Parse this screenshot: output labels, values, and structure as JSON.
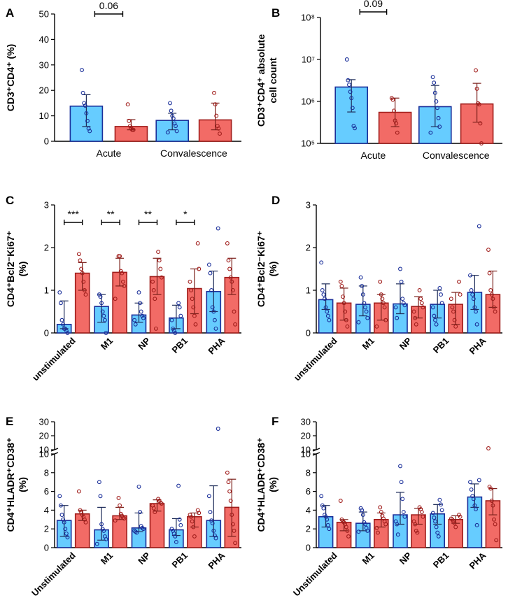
{
  "colors": {
    "acute": "#66ccff",
    "acute_edge": "#1a2f9a",
    "conv": "#f26b66",
    "conv_edge": "#a11e1c",
    "axis": "#000000"
  },
  "chart_data": [
    {
      "panel": "A",
      "type": "bar",
      "ylabel": "CD3⁺CD4⁺ (%)",
      "ylim": [
        0,
        50
      ],
      "yscale": "linear",
      "yticks": [
        "0",
        "10",
        "20",
        "30",
        "40",
        "50"
      ],
      "groups": [
        "Acute",
        "Convalescence"
      ],
      "bars": [
        {
          "series": "acute",
          "value": 13.8,
          "err": [
            5.8,
            18.3
          ],
          "points": [
            28,
            19,
            15,
            14,
            11,
            8,
            5,
            4
          ]
        },
        {
          "series": "conv",
          "value": 5.8,
          "err": [
            4.5,
            8.5
          ],
          "points": [
            14.5,
            8,
            6,
            5,
            4.5,
            4.5
          ]
        },
        {
          "series": "acute",
          "value": 8.2,
          "err": [
            4.5,
            11
          ],
          "points": [
            15,
            12,
            10,
            9,
            7,
            6,
            4,
            3.5
          ]
        },
        {
          "series": "conv",
          "value": 8.4,
          "err": [
            4.5,
            15
          ],
          "points": [
            19,
            14.5,
            10,
            6,
            5,
            3
          ]
        }
      ],
      "annotations": [
        {
          "text": "0.06",
          "from": 0,
          "to": 1
        }
      ]
    },
    {
      "panel": "B",
      "type": "bar",
      "ylabel": "CD3⁺CD4⁺ absolute cell count",
      "ylim": [
        100000,
        100000000
      ],
      "yscale": "log",
      "yticks": [
        "10⁵",
        "10⁶",
        "10⁷",
        "10⁸"
      ],
      "groups": [
        "Acute",
        "Convalescence"
      ],
      "bars": [
        {
          "series": "acute",
          "value": 2200000,
          "err": [
            560000,
            3300000
          ],
          "points": [
            10000000,
            3200000,
            2500000,
            1700000,
            1200000,
            700000,
            260000,
            230000
          ]
        },
        {
          "series": "conv",
          "value": 550000,
          "err": [
            250000,
            1200000
          ],
          "points": [
            1200000,
            1100000,
            600000,
            350000,
            300000,
            180000
          ]
        },
        {
          "series": "acute",
          "value": 750000,
          "err": [
            250000,
            2400000
          ],
          "points": [
            3800000,
            2800000,
            1600000,
            1000000,
            700000,
            400000,
            250000,
            180000
          ]
        },
        {
          "series": "conv",
          "value": 870000,
          "err": [
            320000,
            2700000
          ],
          "points": [
            5500000,
            2000000,
            900000,
            850000,
            300000,
            100000
          ]
        }
      ],
      "annotations": [
        {
          "text": "0.09",
          "from": 0,
          "to": 1
        }
      ]
    },
    {
      "panel": "C",
      "type": "bar",
      "ylabel": "CD4⁺Bcl2⁻Ki67⁺ (%)",
      "ylim": [
        0,
        3
      ],
      "yscale": "linear",
      "yticks": [
        "0",
        "1",
        "2",
        "3"
      ],
      "groups": [
        "unstimulated",
        "M1",
        "NP",
        "PB1",
        "PHA"
      ],
      "bars": [
        {
          "series": "acute",
          "value": 0.2,
          "err": [
            0.1,
            0.75
          ],
          "points": [
            0.95,
            0.7,
            0.3,
            0.2,
            0.1,
            0.1,
            0.05,
            0.0
          ]
        },
        {
          "series": "conv",
          "value": 1.4,
          "err": [
            1.0,
            1.65
          ],
          "points": [
            1.85,
            1.7,
            1.5,
            1.4,
            1.2,
            1.0,
            0.9
          ]
        },
        {
          "series": "acute",
          "value": 0.62,
          "err": [
            0.25,
            0.9
          ],
          "points": [
            0.9,
            0.85,
            0.7,
            0.5,
            0.4,
            0.3,
            0.0
          ]
        },
        {
          "series": "conv",
          "value": 1.42,
          "err": [
            1.1,
            1.75
          ],
          "points": [
            1.8,
            1.8,
            1.45,
            1.4,
            1.2,
            1.1,
            0.8
          ]
        },
        {
          "series": "acute",
          "value": 0.42,
          "err": [
            0.25,
            0.7
          ],
          "points": [
            0.95,
            0.7,
            0.5,
            0.4,
            0.35,
            0.3,
            0.2
          ]
        },
        {
          "series": "conv",
          "value": 1.32,
          "err": [
            0.9,
            1.75
          ],
          "points": [
            1.9,
            1.7,
            1.5,
            1.3,
            1.2,
            1.0,
            0.8,
            0.1
          ]
        },
        {
          "series": "acute",
          "value": 0.35,
          "err": [
            0.1,
            0.65
          ],
          "points": [
            0.7,
            0.6,
            0.4,
            0.3,
            0.1,
            0.05,
            0.0
          ]
        },
        {
          "series": "conv",
          "value": 1.04,
          "err": [
            0.45,
            1.5
          ],
          "points": [
            2.1,
            1.5,
            1.2,
            1.0,
            0.8,
            0.6,
            0.4,
            0.2
          ]
        },
        {
          "series": "acute",
          "value": 0.97,
          "err": [
            0.5,
            1.45
          ],
          "points": [
            2.45,
            1.6,
            1.4,
            1.0,
            0.6,
            0.5,
            0.3,
            0.1
          ]
        },
        {
          "series": "conv",
          "value": 1.3,
          "err": [
            0.9,
            1.75
          ],
          "points": [
            2.1,
            1.7,
            1.5,
            1.3,
            1.2,
            1.0,
            0.5,
            0.2
          ]
        }
      ],
      "annotations": [
        {
          "text": "***",
          "from": 0,
          "to": 1
        },
        {
          "text": "**",
          "from": 2,
          "to": 3
        },
        {
          "text": "**",
          "from": 4,
          "to": 5
        },
        {
          "text": "*",
          "from": 6,
          "to": 7
        }
      ]
    },
    {
      "panel": "D",
      "type": "bar",
      "ylabel": "CD4⁺Bcl2⁻Ki67⁺ (%)",
      "ylim": [
        0,
        3
      ],
      "yscale": "linear",
      "yticks": [
        "0",
        "1",
        "2",
        "3"
      ],
      "groups": [
        "unstimulated",
        "M1",
        "NP",
        "PB1",
        "PHA"
      ],
      "bars": [
        {
          "series": "acute",
          "value": 0.78,
          "err": [
            0.55,
            1.15
          ],
          "points": [
            1.65,
            1.0,
            0.9,
            0.8,
            0.6,
            0.5,
            0.4,
            0.3
          ]
        },
        {
          "series": "conv",
          "value": 0.7,
          "err": [
            0.3,
            1.05
          ],
          "points": [
            1.2,
            1.1,
            0.85,
            0.7,
            0.5,
            0.3,
            0.15
          ]
        },
        {
          "series": "acute",
          "value": 0.67,
          "err": [
            0.4,
            1.1
          ],
          "points": [
            1.3,
            1.1,
            0.9,
            0.7,
            0.6,
            0.5,
            0.35,
            0.25
          ]
        },
        {
          "series": "conv",
          "value": 0.7,
          "err": [
            0.3,
            0.9
          ],
          "points": [
            1.2,
            0.9,
            0.8,
            0.7,
            0.6,
            0.3,
            0.15
          ]
        },
        {
          "series": "acute",
          "value": 0.68,
          "err": [
            0.45,
            1.15
          ],
          "points": [
            1.5,
            1.2,
            0.8,
            0.7,
            0.65,
            0.6,
            0.35
          ]
        },
        {
          "series": "conv",
          "value": 0.62,
          "err": [
            0.35,
            0.85
          ],
          "points": [
            1.0,
            0.8,
            0.7,
            0.6,
            0.5,
            0.35,
            0.2
          ]
        },
        {
          "series": "acute",
          "value": 0.67,
          "err": [
            0.35,
            1.0
          ],
          "points": [
            1.05,
            0.9,
            0.7,
            0.6,
            0.4,
            0.3,
            0.2
          ]
        },
        {
          "series": "conv",
          "value": 0.67,
          "err": [
            0.2,
            0.95
          ],
          "points": [
            1.2,
            0.9,
            0.8,
            0.6,
            0.5,
            0.3,
            0.15
          ]
        },
        {
          "series": "acute",
          "value": 0.95,
          "err": [
            0.55,
            1.35
          ],
          "points": [
            2.5,
            1.35,
            1.0,
            0.9,
            0.8,
            0.6,
            0.5,
            0.2
          ]
        },
        {
          "series": "conv",
          "value": 0.9,
          "err": [
            0.6,
            1.45
          ],
          "points": [
            1.95,
            1.4,
            1.0,
            0.9,
            0.8,
            0.6,
            0.5
          ]
        }
      ],
      "annotations": []
    },
    {
      "panel": "E",
      "type": "bar",
      "ylabel": "CD4⁺HLADR⁺CD38⁺ (%)",
      "yscale": "broken",
      "ylim": [
        0,
        30
      ],
      "yticks": [
        "0",
        "2",
        "4",
        "6",
        "8",
        "10",
        "10",
        "20",
        "30"
      ],
      "groups": [
        "Unstimulated",
        "M1",
        "NP",
        "PB1",
        "PHA"
      ],
      "bars": [
        {
          "series": "acute",
          "value": 2.9,
          "err": [
            1.2,
            4.5
          ],
          "points": [
            5.5,
            4.5,
            3.5,
            3.0,
            2.7,
            2.0,
            1.5,
            1.1
          ]
        },
        {
          "series": "conv",
          "value": 3.6,
          "err": [
            2.9,
            4.0
          ],
          "points": [
            6.0,
            4.0,
            3.8,
            3.5,
            3.3,
            3.0,
            2.7
          ]
        },
        {
          "series": "acute",
          "value": 1.9,
          "err": [
            0.8,
            4.3
          ],
          "points": [
            7.0,
            5.5,
            2.5,
            2.0,
            1.8,
            1.2,
            0.9,
            0.4
          ]
        },
        {
          "series": "conv",
          "value": 3.4,
          "err": [
            3.0,
            4.3
          ],
          "points": [
            5.3,
            4.5,
            3.6,
            3.4,
            3.2,
            3.1,
            2.9
          ]
        },
        {
          "series": "acute",
          "value": 2.1,
          "err": [
            1.7,
            3.7
          ],
          "points": [
            6.5,
            3.8,
            2.3,
            2.1,
            2.0,
            1.8,
            1.7,
            1.6
          ]
        },
        {
          "series": "conv",
          "value": 4.7,
          "err": [
            3.9,
            5.1
          ],
          "points": [
            5.2,
            5.0,
            4.8,
            4.7,
            4.5,
            4.2,
            3.8
          ]
        },
        {
          "series": "acute",
          "value": 1.9,
          "err": [
            1.3,
            3.1
          ],
          "points": [
            6.6,
            3.0,
            2.4,
            2.0,
            1.8,
            1.5,
            1.2,
            0.6
          ]
        },
        {
          "series": "conv",
          "value": 3.3,
          "err": [
            2.2,
            3.7
          ],
          "points": [
            4.0,
            3.7,
            3.5,
            3.3,
            2.8,
            2.2,
            1.2
          ]
        },
        {
          "series": "acute",
          "value": 2.9,
          "err": [
            1.2,
            6.6
          ],
          "points": [
            25,
            5.5,
            3.8,
            2.9,
            2.6,
            1.8,
            1.3,
            1.0
          ]
        },
        {
          "series": "conv",
          "value": 4.3,
          "err": [
            1.2,
            7.3
          ],
          "points": [
            8.0,
            7.0,
            6.0,
            5.0,
            3.5,
            2.5,
            1.8,
            0.5
          ]
        }
      ],
      "annotations": []
    },
    {
      "panel": "F",
      "type": "bar",
      "ylabel": "CD4⁺HLADR⁺CD38⁺ (%)",
      "yscale": "broken",
      "ylim": [
        0,
        30
      ],
      "yticks": [
        "0",
        "2",
        "4",
        "6",
        "8",
        "10",
        "10",
        "20",
        "30"
      ],
      "groups": [
        "Unstimulated",
        "M1",
        "NP",
        "PB1",
        "PHA"
      ],
      "bars": [
        {
          "series": "acute",
          "value": 3.3,
          "err": [
            2.2,
            4.5
          ],
          "points": [
            5.5,
            4.5,
            4.2,
            3.5,
            3.3,
            3.0,
            2.4,
            2.0
          ]
        },
        {
          "series": "conv",
          "value": 2.7,
          "err": [
            1.8,
            3.0
          ],
          "points": [
            5.0,
            3.0,
            2.8,
            2.7,
            2.5,
            2.2,
            1.8,
            1.2
          ]
        },
        {
          "series": "acute",
          "value": 2.6,
          "err": [
            1.8,
            3.8
          ],
          "points": [
            4.2,
            4.0,
            3.5,
            2.7,
            2.5,
            2.1,
            1.8,
            1.7
          ]
        },
        {
          "series": "conv",
          "value": 3.0,
          "err": [
            2.2,
            3.7
          ],
          "points": [
            4.3,
            3.8,
            3.4,
            3.1,
            2.8,
            2.5,
            2.1,
            1.6
          ]
        },
        {
          "series": "acute",
          "value": 3.5,
          "err": [
            2.5,
            5.9
          ],
          "points": [
            8.7,
            7.0,
            5.2,
            3.8,
            3.3,
            2.8,
            2.5,
            1.4
          ]
        },
        {
          "series": "conv",
          "value": 3.5,
          "err": [
            2.5,
            4.2
          ],
          "points": [
            4.3,
            4.1,
            3.8,
            3.3,
            2.8,
            2.5,
            1.8,
            1.6
          ]
        },
        {
          "series": "acute",
          "value": 3.6,
          "err": [
            2.5,
            4.6
          ],
          "points": [
            5.1,
            4.6,
            4.0,
            3.7,
            3.2,
            2.8,
            2.2,
            1.6,
            1.2
          ]
        },
        {
          "series": "conv",
          "value": 3.0,
          "err": [
            2.6,
            3.4
          ],
          "points": [
            3.5,
            3.3,
            3.1,
            3.0,
            2.8,
            2.6,
            2.2
          ]
        },
        {
          "series": "acute",
          "value": 5.4,
          "err": [
            4.3,
            6.8
          ],
          "points": [
            7.2,
            7.0,
            6.2,
            5.5,
            5.2,
            4.5,
            4.1,
            2.4
          ]
        },
        {
          "series": "conv",
          "value": 5.0,
          "err": [
            3.5,
            6.3
          ],
          "points": [
            11,
            6.5,
            6.3,
            5.0,
            4.5,
            3.0,
            2.5,
            0.8
          ]
        }
      ],
      "annotations": []
    }
  ]
}
